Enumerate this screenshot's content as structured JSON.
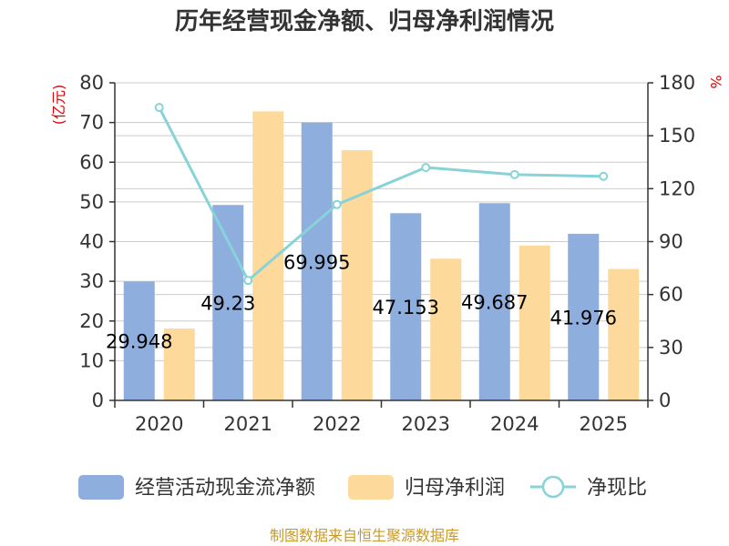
{
  "chart_data": {
    "type": "bar",
    "title": "历年经营现金净额、归母净利润情况",
    "categories": [
      "2020",
      "2021",
      "2022",
      "2023",
      "2024",
      "2025"
    ],
    "series": [
      {
        "name": "经营活动现金流净额",
        "type": "bar",
        "axis": "left",
        "values": [
          29.948,
          49.23,
          69.995,
          47.153,
          49.687,
          41.976
        ],
        "labels": [
          "29.948",
          "49.23",
          "69.995",
          "47.153",
          "49.687",
          "41.976"
        ],
        "color": "#8eaedd"
      },
      {
        "name": "归母净利润",
        "type": "bar",
        "axis": "left",
        "values": [
          18.1,
          72.8,
          63.0,
          35.7,
          39.0,
          33.1
        ],
        "color": "#fdd99b"
      },
      {
        "name": "净现比",
        "type": "line",
        "axis": "right",
        "values": [
          166,
          68,
          111,
          132,
          128,
          127
        ],
        "color": "#88d3d8"
      }
    ],
    "y_left": {
      "unit_label": "(亿元)",
      "ylim": [
        0,
        80
      ],
      "ticks": [
        "0",
        "10",
        "20",
        "30",
        "40",
        "50",
        "60",
        "70",
        "80"
      ]
    },
    "y_right": {
      "unit_label": "%",
      "ylim": [
        0,
        180
      ],
      "ticks": [
        "0",
        "30",
        "60",
        "90",
        "120",
        "150",
        "180"
      ]
    },
    "grid": true,
    "legend_position": "bottom"
  },
  "footer": {
    "source": "制图数据来自恒生聚源数据库"
  }
}
